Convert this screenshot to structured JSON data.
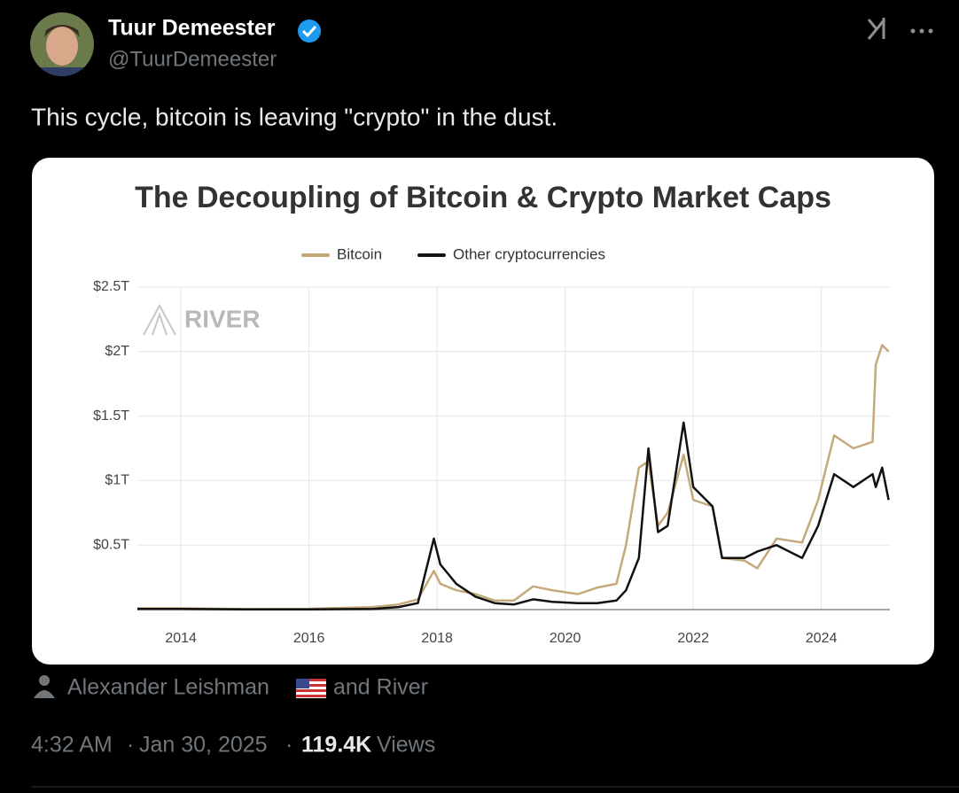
{
  "author": {
    "name": "Tuur Demeester",
    "handle": "@TuurDemeester"
  },
  "text": "This cycle, bitcoin is leaving \"crypto\" in the dust.",
  "credit": {
    "person": "Alexander Leishman",
    "rest": "and River"
  },
  "footer": {
    "time": "4:32 AM",
    "separator": "·",
    "date": "Jan 30, 2025",
    "views": "119.4K",
    "views_label": "Views"
  },
  "chart_data": {
    "type": "line",
    "title": "The Decoupling of Bitcoin & Crypto Market Caps",
    "watermark": "RIVER",
    "x": [
      2013.32,
      2014,
      2015,
      2016,
      2017,
      2017.4,
      2017.7,
      2017.95,
      2018.05,
      2018.3,
      2018.6,
      2018.9,
      2019.2,
      2019.5,
      2019.8,
      2020.2,
      2020.5,
      2020.8,
      2020.95,
      2021.15,
      2021.3,
      2021.45,
      2021.6,
      2021.85,
      2022.0,
      2022.3,
      2022.45,
      2022.8,
      2023.0,
      2023.3,
      2023.7,
      2023.95,
      2024.2,
      2024.5,
      2024.8,
      2024.85,
      2024.95,
      2025.05
    ],
    "series": [
      {
        "name": "Bitcoin",
        "color": "#c4a97a",
        "values": [
          0.01,
          0.01,
          0.004,
          0.006,
          0.02,
          0.04,
          0.08,
          0.3,
          0.2,
          0.15,
          0.12,
          0.07,
          0.07,
          0.18,
          0.15,
          0.12,
          0.17,
          0.2,
          0.5,
          1.1,
          1.15,
          0.65,
          0.75,
          1.2,
          0.85,
          0.8,
          0.4,
          0.38,
          0.32,
          0.55,
          0.52,
          0.85,
          1.35,
          1.25,
          1.3,
          1.9,
          2.05,
          2.0
        ]
      },
      {
        "name": "Other cryptocurrencies",
        "color": "#111111",
        "values": [
          0.005,
          0.005,
          0.002,
          0.002,
          0.005,
          0.02,
          0.05,
          0.55,
          0.35,
          0.2,
          0.1,
          0.05,
          0.04,
          0.08,
          0.06,
          0.05,
          0.05,
          0.07,
          0.15,
          0.4,
          1.25,
          0.6,
          0.65,
          1.45,
          0.95,
          0.8,
          0.4,
          0.4,
          0.45,
          0.5,
          0.4,
          0.65,
          1.05,
          0.95,
          1.05,
          0.95,
          1.1,
          0.85
        ]
      }
    ],
    "xlim": [
      2013.32,
      2025.07
    ],
    "xticks": [
      2014,
      2016,
      2018,
      2020,
      2022,
      2024
    ],
    "ylim": [
      0,
      2.5
    ],
    "yticks": [
      {
        "value": 0.5,
        "label": "$0.5T"
      },
      {
        "value": 1,
        "label": "$1T"
      },
      {
        "value": 1.5,
        "label": "$1.5T"
      },
      {
        "value": 2,
        "label": "$2T"
      },
      {
        "value": 2.5,
        "label": "$2.5T"
      }
    ],
    "grid": true
  }
}
